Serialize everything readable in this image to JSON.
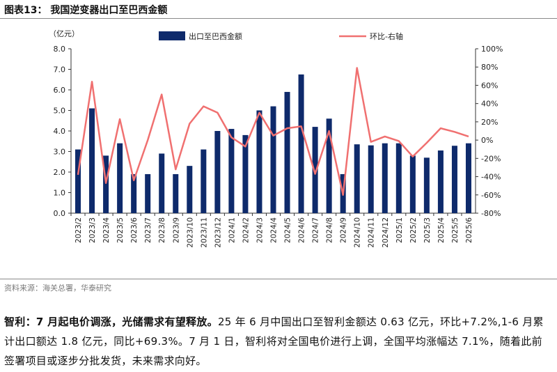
{
  "header": {
    "title": "图表13：  我国逆变器出口至巴西金额"
  },
  "chart_data": {
    "type": "bar+line",
    "categories": [
      "2023/2",
      "2023/3",
      "2023/4",
      "2023/5",
      "2023/6",
      "2023/7",
      "2023/8",
      "2023/9",
      "2023/10",
      "2023/11",
      "2023/12",
      "2024/1",
      "2024/2",
      "2024/3",
      "2024/4",
      "2024/5",
      "2024/6",
      "2024/7",
      "2024/8",
      "2024/9",
      "2024/10",
      "2024/11",
      "2024/12",
      "2025/1",
      "2025/2",
      "2025/3",
      "2025/4",
      "2025/5",
      "2025/6"
    ],
    "series": [
      {
        "name": "出口至巴西金额",
        "type": "bar",
        "axis": "left",
        "color": "#0e2a6b",
        "values": [
          3.1,
          5.1,
          2.8,
          3.4,
          1.9,
          1.9,
          2.9,
          1.9,
          2.3,
          3.1,
          4.0,
          4.1,
          3.8,
          5.0,
          5.2,
          5.9,
          6.75,
          4.2,
          4.6,
          1.9,
          3.35,
          3.3,
          3.4,
          3.4,
          2.8,
          2.7,
          3.05,
          3.28,
          3.4
        ]
      },
      {
        "name": "环比-右轴",
        "type": "line",
        "axis": "right",
        "color": "#f07070",
        "values": [
          -38,
          64,
          -47,
          23,
          -44,
          0,
          50,
          -32,
          18,
          37,
          30,
          3,
          -7,
          30,
          5,
          13,
          15,
          -37,
          10,
          -60,
          79,
          -2,
          4,
          -1,
          -18,
          -3,
          13,
          9,
          4
        ]
      }
    ],
    "y_left": {
      "label": "（亿元）",
      "min": 0,
      "max": 8,
      "ticks": [
        "0.0",
        "1.0",
        "2.0",
        "3.0",
        "4.0",
        "5.0",
        "6.0",
        "7.0",
        "8.0"
      ]
    },
    "y_right": {
      "min": -80,
      "max": 100,
      "ticks": [
        "-80%",
        "-60%",
        "-40%",
        "-20%",
        "0%",
        "20%",
        "40%",
        "60%",
        "80%",
        "100%"
      ]
    },
    "legend": {
      "placement": "top",
      "bar_label": "出口至巴西金额",
      "line_label": "环比-右轴"
    }
  },
  "footer": {
    "source": "资料来源：海关总署，华泰研究",
    "paragraph_bold": "智利：7 月起电价调涨，光储需求有望释放。",
    "paragraph_rest": "25 年 6 月中国出口至智利金额达 0.63 亿元，环比+7.2%,1-6 月累计出口额达 1.8 亿元，同比+69.3%。7 月 1 日，智利将对全国电价进行上调，全国平均涨幅达 7.1%，随着此前签署项目或逐步分批发货，未来需求向好。"
  }
}
